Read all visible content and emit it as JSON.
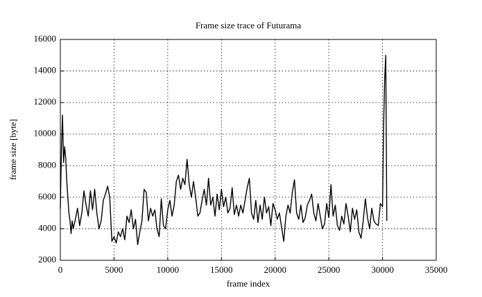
{
  "chart_data": {
    "type": "line",
    "title": "Frame size trace of Futurama",
    "x_label": "frame index",
    "y_label": "frame size [byte]",
    "xlim": [
      0,
      35000
    ],
    "xticks": [
      0,
      5000,
      10000,
      15000,
      20000,
      25000,
      30000,
      35000
    ],
    "ylim": [
      2000,
      16000
    ],
    "yticks": [
      2000,
      4000,
      6000,
      8000,
      10000,
      12000,
      14000,
      16000
    ],
    "grid": true,
    "x": [
      0,
      100,
      200,
      300,
      400,
      500,
      600,
      700,
      800,
      900,
      1000,
      1100,
      1200,
      1400,
      1600,
      1800,
      2000,
      2200,
      2400,
      2600,
      2800,
      3000,
      3200,
      3400,
      3600,
      3800,
      4000,
      4200,
      4400,
      4600,
      4800,
      5000,
      5200,
      5400,
      5600,
      5800,
      6000,
      6200,
      6400,
      6600,
      6800,
      7000,
      7200,
      7400,
      7600,
      7800,
      8000,
      8200,
      8400,
      8600,
      8800,
      9000,
      9200,
      9400,
      9600,
      9800,
      10000,
      10200,
      10400,
      10600,
      10800,
      11000,
      11200,
      11400,
      11600,
      11800,
      12000,
      12200,
      12400,
      12600,
      12800,
      13000,
      13200,
      13400,
      13600,
      13800,
      14000,
      14200,
      14400,
      14600,
      14800,
      15000,
      15200,
      15400,
      15600,
      15800,
      16000,
      16200,
      16400,
      16600,
      16800,
      17000,
      17200,
      17400,
      17600,
      17800,
      18000,
      18200,
      18400,
      18600,
      18800,
      19000,
      19200,
      19400,
      19600,
      19800,
      20000,
      20200,
      20400,
      20600,
      20800,
      21000,
      21200,
      21400,
      21600,
      21800,
      22000,
      22200,
      22400,
      22600,
      22800,
      23000,
      23200,
      23400,
      23600,
      23800,
      24000,
      24200,
      24400,
      24600,
      24800,
      25000,
      25200,
      25400,
      25600,
      25800,
      26000,
      26200,
      26400,
      26600,
      26800,
      27000,
      27200,
      27400,
      27600,
      27800,
      28000,
      28200,
      28400,
      28600,
      28800,
      29000,
      29200,
      29400,
      29600,
      29800,
      30000,
      30100,
      30200,
      30300,
      30400
    ],
    "series": [
      {
        "name": "frame size",
        "color": "#000000",
        "values": [
          5300,
          9000,
          11200,
          8200,
          9200,
          8500,
          7000,
          6000,
          5000,
          4500,
          3700,
          4500,
          4000,
          4600,
          5300,
          4200,
          5000,
          6400,
          5500,
          4800,
          6400,
          5200,
          6500,
          5000,
          4000,
          4500,
          5800,
          6200,
          6700,
          6000,
          3200,
          3500,
          3100,
          3800,
          3500,
          4000,
          3300,
          4800,
          4400,
          5200,
          4000,
          4600,
          3000,
          3800,
          4500,
          6500,
          6300,
          4500,
          5300,
          4800,
          5200,
          4000,
          3500,
          5900,
          4200,
          4000,
          5200,
          5800,
          4800,
          5500,
          7000,
          7400,
          6500,
          7200,
          6800,
          8400,
          6800,
          6000,
          7000,
          6000,
          4800,
          5000,
          5800,
          6500,
          5500,
          7200,
          5500,
          6000,
          4800,
          6200,
          5200,
          6500,
          5400,
          6000,
          5000,
          5300,
          6600,
          4900,
          5500,
          4800,
          5500,
          5000,
          5800,
          6600,
          7200,
          5000,
          4600,
          5800,
          4400,
          5500,
          4600,
          6000,
          5000,
          5400,
          4200,
          5600,
          5200,
          4600,
          5000,
          4100,
          3200,
          4800,
          5500,
          5000,
          6300,
          7100,
          5000,
          4600,
          5500,
          4400,
          4700,
          5500,
          5800,
          6200,
          5000,
          4500,
          5600,
          4800,
          4000,
          4300,
          5600,
          4700,
          6800,
          4800,
          5500,
          4200,
          3900,
          4800,
          4300,
          5600,
          4800,
          3800,
          5300,
          4600,
          5200,
          3800,
          3400,
          4500,
          5900,
          4700,
          4000,
          5300,
          4500,
          4300,
          4200,
          5600,
          5400,
          10500,
          13500,
          15000,
          4500
        ]
      }
    ]
  }
}
